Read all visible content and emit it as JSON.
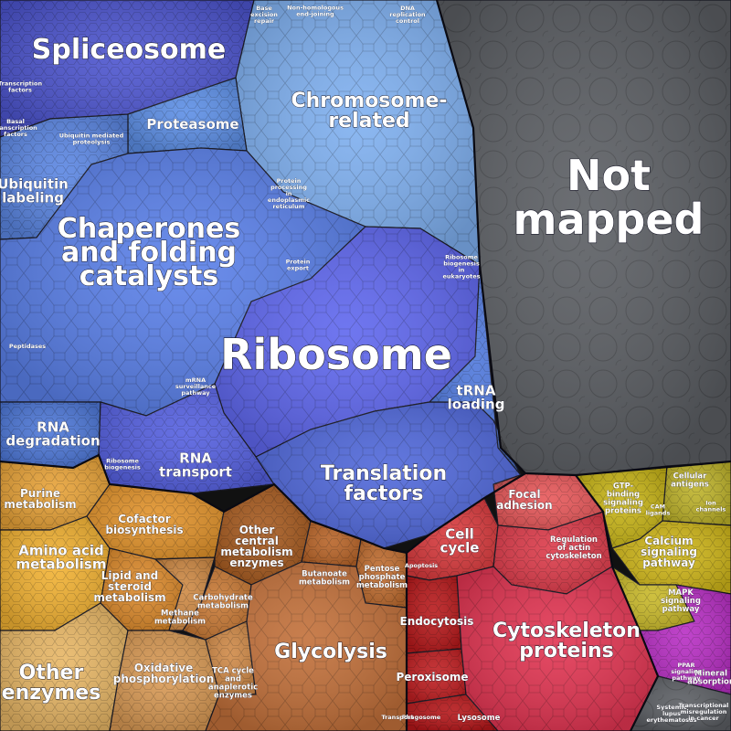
{
  "diagram": {
    "regions": [
      {
        "key": "spliceosome",
        "color": "#4d55cf",
        "labels": [
          {
            "text": "Spliceosome"
          }
        ]
      },
      {
        "key": "chromosome",
        "color": "#7fb0f0",
        "labels": [
          {
            "text": "Chromosome-"
          },
          {
            "text": "related"
          }
        ]
      },
      {
        "key": "proteasome",
        "color": "#5d8fe6",
        "labels": [
          {
            "text": "Proteasome"
          }
        ]
      },
      {
        "key": "ubiquitin_labeling",
        "color": "#5b86e2",
        "labels": [
          {
            "text": "Ubiquitin"
          },
          {
            "text": "labeling"
          }
        ]
      },
      {
        "key": "chaperones",
        "color": "#5a80e9",
        "labels": [
          {
            "text": "Chaperones"
          },
          {
            "text": "and folding"
          },
          {
            "text": "catalysts"
          }
        ]
      },
      {
        "key": "ribosome",
        "color": "#5f67ee",
        "labels": [
          {
            "text": "Ribosome"
          }
        ]
      },
      {
        "key": "rna_degradation",
        "color": "#4e78d8",
        "labels": [
          {
            "text": "RNA"
          },
          {
            "text": "degradation"
          }
        ]
      },
      {
        "key": "rna_transport",
        "color": "#5560e0",
        "labels": [
          {
            "text": "RNA"
          },
          {
            "text": "transport"
          }
        ]
      },
      {
        "key": "translation_factors",
        "color": "#5068da",
        "labels": [
          {
            "text": "Translation"
          },
          {
            "text": "factors"
          }
        ]
      },
      {
        "key": "trna_loading",
        "color": "#4f78dc",
        "labels": [
          {
            "text": "tRNA"
          },
          {
            "text": "loading"
          }
        ]
      },
      {
        "key": "not_mapped",
        "color": "#5b5e63",
        "labels": [
          {
            "text": "Not"
          },
          {
            "text": "mapped"
          }
        ]
      },
      {
        "key": "purine",
        "color": "#e7a238",
        "labels": [
          {
            "text": "Purine"
          },
          {
            "text": "metabolism"
          }
        ]
      },
      {
        "key": "amino_acid",
        "color": "#f2b233",
        "labels": [
          {
            "text": "Amino acid"
          },
          {
            "text": "metabolism"
          }
        ]
      },
      {
        "key": "cofactor",
        "color": "#e3942c",
        "labels": [
          {
            "text": "Cofactor"
          },
          {
            "text": "biosynthesis"
          }
        ]
      },
      {
        "key": "lipid",
        "color": "#dc8a2c",
        "labels": [
          {
            "text": "Lipid and"
          },
          {
            "text": "steroid"
          },
          {
            "text": "metabolism"
          }
        ]
      },
      {
        "key": "other_enzymes",
        "color": "#e8b766",
        "labels": [
          {
            "text": "Other"
          },
          {
            "text": "enzymes"
          }
        ]
      },
      {
        "key": "oxidative",
        "color": "#d99a55",
        "labels": [
          {
            "text": "Oxidative"
          },
          {
            "text": "phosphorylation"
          }
        ]
      },
      {
        "key": "methane",
        "color": "#cf8a45",
        "labels": [
          {
            "text": "Methane"
          },
          {
            "text": "metabolism"
          }
        ]
      },
      {
        "key": "other_central",
        "color": "#a65a1f",
        "labels": [
          {
            "text": "Other"
          },
          {
            "text": "central"
          },
          {
            "text": "metabolism"
          },
          {
            "text": "enzymes"
          }
        ]
      },
      {
        "key": "butanoate",
        "color": "#b86428",
        "labels": [
          {
            "text": "Butanoate"
          },
          {
            "text": "metabolism"
          }
        ]
      },
      {
        "key": "pentose",
        "color": "#c06d30",
        "labels": [
          {
            "text": "Pentose"
          },
          {
            "text": "phosphate"
          },
          {
            "text": "metabolism"
          }
        ]
      },
      {
        "key": "carbohydrate",
        "color": "#c87935",
        "labels": [
          {
            "text": "Carbohydrate"
          },
          {
            "text": "metabolism"
          }
        ]
      },
      {
        "key": "tca",
        "color": "#d08a48",
        "labels": [
          {
            "text": "TCA cycle"
          },
          {
            "text": "and"
          },
          {
            "text": "anaplerotic"
          },
          {
            "text": "enzymes"
          }
        ]
      },
      {
        "key": "glycolysis",
        "color": "#c2703a",
        "labels": [
          {
            "text": "Glycolysis"
          }
        ]
      },
      {
        "key": "focal_adhesion",
        "color": "#e8585a",
        "labels": [
          {
            "text": "Focal"
          },
          {
            "text": "adhesion"
          }
        ]
      },
      {
        "key": "cell_cycle",
        "color": "#d93a3d",
        "labels": [
          {
            "text": "Cell"
          },
          {
            "text": "cycle"
          }
        ]
      },
      {
        "key": "regulation_actin",
        "color": "#dd3b4a",
        "labels": [
          {
            "text": "Regulation"
          },
          {
            "text": "of actin"
          },
          {
            "text": "cytoskeleton"
          }
        ]
      },
      {
        "key": "endocytosis",
        "color": "#b81a1c",
        "labels": [
          {
            "text": "Endocytosis"
          }
        ]
      },
      {
        "key": "peroxisome",
        "color": "#c01f22",
        "labels": [
          {
            "text": "Peroxisome"
          }
        ]
      },
      {
        "key": "cytoskeleton",
        "color": "#e23552",
        "labels": [
          {
            "text": "Cytoskeleton"
          },
          {
            "text": "proteins"
          }
        ]
      },
      {
        "key": "gtp_binding",
        "color": "#c7b417",
        "labels": [
          {
            "text": "GTP-"
          },
          {
            "text": "binding"
          },
          {
            "text": "signaling"
          },
          {
            "text": "proteins"
          }
        ]
      },
      {
        "key": "cellular_antigens",
        "color": "#bdb22a",
        "labels": [
          {
            "text": "Cellular"
          },
          {
            "text": "antigens"
          }
        ]
      },
      {
        "key": "calcium",
        "color": "#d0b71a",
        "labels": [
          {
            "text": "Calcium"
          },
          {
            "text": "signaling"
          },
          {
            "text": "pathway"
          }
        ]
      },
      {
        "key": "mapk",
        "color": "#c9b92a",
        "labels": [
          {
            "text": "MAPK"
          },
          {
            "text": "signaling"
          },
          {
            "text": "pathway"
          }
        ]
      },
      {
        "key": "mineral",
        "color": "#b82fc4",
        "labels": [
          {
            "text": "Mineral"
          },
          {
            "text": "absorption"
          }
        ]
      },
      {
        "key": "lysosome",
        "color": "#b5171a",
        "labels": [
          {
            "text": "Lysosome"
          }
        ]
      }
    ],
    "minor_labels": [
      {
        "key": "base_excision",
        "lines": [
          "Base",
          "excision",
          "repair"
        ]
      },
      {
        "key": "non_homologous",
        "lines": [
          "Non-homologous",
          "end-joining"
        ]
      },
      {
        "key": "dna_replication",
        "lines": [
          "DNA",
          "replication",
          "control"
        ]
      },
      {
        "key": "ubiquitin_mediated",
        "lines": [
          "Ubiquitin mediated",
          "proteolysis"
        ]
      },
      {
        "key": "protein_processing",
        "lines": [
          "Protein",
          "processing",
          "in",
          "endoplasmic",
          "reticulum"
        ]
      },
      {
        "key": "protein_export",
        "lines": [
          "Protein",
          "export"
        ]
      },
      {
        "key": "ribosome_biogenesis_euk",
        "lines": [
          "Ribosome",
          "biogenesis",
          "in",
          "eukaryotes"
        ]
      },
      {
        "key": "peptidases",
        "lines": [
          "Peptidases"
        ]
      },
      {
        "key": "ribosome_biogenesis",
        "lines": [
          "Ribosome",
          "biogenesis"
        ]
      },
      {
        "key": "transcription_factors",
        "lines": [
          "Transcription",
          "factors"
        ]
      },
      {
        "key": "basal_tf",
        "lines": [
          "Basal",
          "transcription",
          "factors"
        ]
      },
      {
        "key": "mrna_surveillance",
        "lines": [
          "mRNA",
          "surveillance",
          "pathway"
        ]
      },
      {
        "key": "apoptosis",
        "lines": [
          "Apoptosis"
        ]
      },
      {
        "key": "phagosome",
        "lines": [
          "Phagosome"
        ]
      },
      {
        "key": "transport",
        "lines": [
          "Transport"
        ]
      },
      {
        "key": "cam_ligands",
        "lines": [
          "CAM",
          "ligands"
        ]
      },
      {
        "key": "ion_channels",
        "lines": [
          "Ion",
          "channels"
        ]
      },
      {
        "key": "ppar",
        "lines": [
          "PPAR",
          "signaling",
          "pathway"
        ]
      },
      {
        "key": "systemic_lupus",
        "lines": [
          "Systemic",
          "lupus",
          "erythematosus"
        ]
      },
      {
        "key": "transcriptional_misreg",
        "lines": [
          "Transcriptional",
          "misregulation",
          "in cancer"
        ]
      }
    ]
  }
}
